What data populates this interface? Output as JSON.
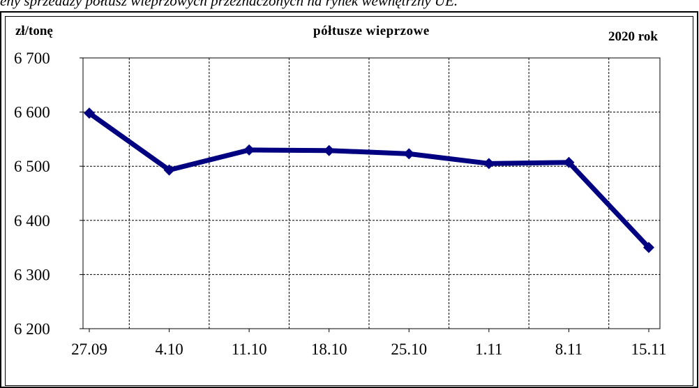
{
  "caption": "eny sprzedaży półtusz wieprzowych przeznaczonych na rynek wewnętrzny UE.",
  "chart_data": {
    "type": "line",
    "unit_label": "zł/tonę",
    "title": "półtusze wieprzowe",
    "year_label": "2020 rok",
    "categories": [
      "27.09",
      "4.10",
      "11.10",
      "18.10",
      "25.10",
      "1.11",
      "8.11",
      "15.11"
    ],
    "series": [
      {
        "values": [
          6598,
          6493,
          6530,
          6529,
          6523,
          6505,
          6507,
          6350
        ]
      }
    ],
    "yticks": [
      "6 200",
      "6 300",
      "6 400",
      "6 500",
      "6 600",
      "6 700"
    ],
    "ytick_values": [
      6200,
      6300,
      6400,
      6500,
      6600,
      6700
    ],
    "ylim": [
      6200,
      6700
    ],
    "grid": true,
    "line_color": "#000080"
  }
}
